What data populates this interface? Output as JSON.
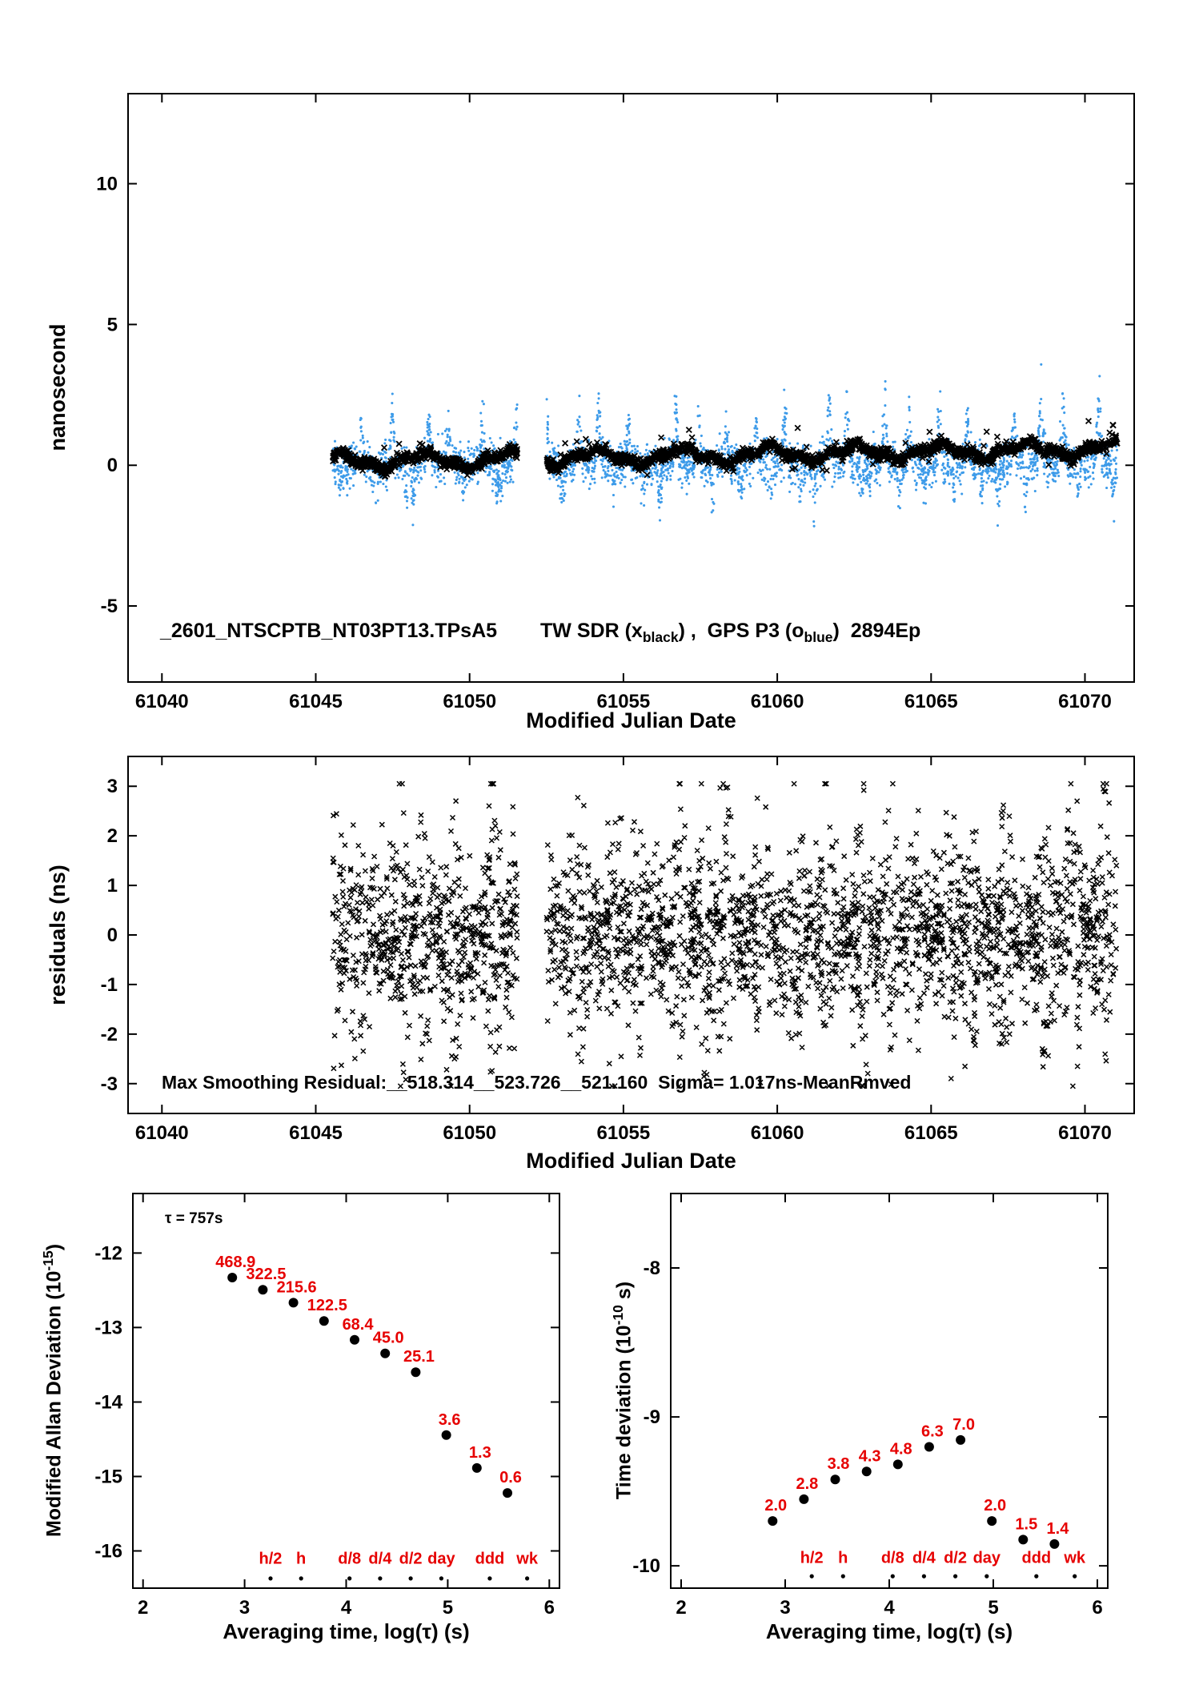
{
  "page": {
    "background": "#ffffff"
  },
  "colors": {
    "blue": "#3D9BE9",
    "red": "#E60000",
    "black": "#000000"
  },
  "chart_data": [
    {
      "id": "tw-gps",
      "type": "scatter",
      "title": {
        "file": "_2601_NTSCPTB_NT03PT13.TPsA5",
        "tw": "TW SDR (x",
        "tw_sub": "black",
        "mid": ") ,  GPS P3 (o",
        "gps_sub": "blue",
        "end": ")  2894Ep"
      },
      "xlabel": "Modified Julian Date",
      "ylabel": "nanosecond",
      "xlim": [
        61038.9,
        61071.6
      ],
      "ylim": [
        -7.7,
        13.2
      ],
      "xticks": [
        61040,
        61045,
        61050,
        61055,
        61060,
        61065,
        61070
      ],
      "xtick_labels": [
        "61040",
        "61045",
        "61050",
        "61055",
        "61060",
        "61065",
        "61070"
      ],
      "yticks": [
        -5,
        0,
        5,
        10
      ],
      "ytick_labels": [
        "-5",
        "0",
        "5",
        "10"
      ],
      "series": [
        {
          "name": "GPS P3 blue dots",
          "marker": "dot",
          "color": "#3D9BE9",
          "seed": 1311,
          "count": 3200,
          "segments": [
            [
              61045.55,
              61051.55
            ],
            [
              61052.5,
              61071.05
            ]
          ],
          "model": {
            "base": 0.05,
            "noise": 0.38,
            "pos_amp": 1.8,
            "neg_amp": 1.3,
            "trend_amp": 0.35
          }
        },
        {
          "name": "TW SDR black x",
          "marker": "x",
          "color": "#000000",
          "seed": 2718,
          "count": 2200,
          "segments": [
            [
              61045.55,
              61051.55
            ],
            [
              61052.5,
              61071.05
            ]
          ],
          "model": {
            "base": 0.12,
            "noise": 0.1,
            "wander": 0.22,
            "trend": 0.019,
            "spike_prob": 0.05,
            "spike_amp": 0.9
          }
        }
      ]
    },
    {
      "id": "residuals",
      "type": "scatter",
      "annotation": "Max Smoothing Residual:__518.314__523.726__521.160  Sigma= 1.017ns-MeanRmved",
      "xlabel": "Modified Julian Date",
      "ylabel": "residuals (ns)",
      "xlim": [
        61038.9,
        61071.6
      ],
      "ylim": [
        -3.6,
        3.6
      ],
      "xticks": [
        61040,
        61045,
        61050,
        61055,
        61060,
        61065,
        61070
      ],
      "xtick_labels": [
        "61040",
        "61045",
        "61050",
        "61055",
        "61060",
        "61065",
        "61070"
      ],
      "yticks": [
        -3,
        -2,
        -1,
        0,
        1,
        2,
        3
      ],
      "ytick_labels": [
        "-3",
        "-2",
        "-1",
        "0",
        "1",
        "2",
        "3"
      ],
      "series": [
        {
          "name": "residuals black x",
          "marker": "x",
          "color": "#000000",
          "seed": 909,
          "count": 3000,
          "segments": [
            [
              61045.55,
              61051.55
            ],
            [
              61052.5,
              61071.05
            ]
          ],
          "model": {
            "day_width": [
              0.62,
              0.85
            ],
            "clamp": 3.05
          }
        }
      ]
    },
    {
      "id": "mdev",
      "type": "scatter",
      "annotation": "τ = 757s",
      "xlabel": "Averaging time, log(τ) (s)",
      "ylabel": "Modified Allan Deviation (10^-15)",
      "ylabel_parts": [
        {
          "t": "Modified Allan Deviation (10"
        },
        {
          "t": "-15",
          "sup": true
        },
        {
          "t": ")"
        }
      ],
      "xlim": [
        1.9,
        6.1
      ],
      "ylim": [
        -16.5,
        -11.2
      ],
      "xticks": [
        2,
        3,
        4,
        5,
        6
      ],
      "xtick_labels": [
        "2",
        "3",
        "4",
        "5",
        "6"
      ],
      "yticks": [
        -12,
        -13,
        -14,
        -15,
        -16
      ],
      "ytick_labels": [
        "-12",
        "-13",
        "-14",
        "-15",
        "-16"
      ],
      "points": {
        "log_tau": [
          2.879,
          3.18,
          3.481,
          3.782,
          4.083,
          4.384,
          4.685,
          4.986,
          5.287,
          5.588
        ],
        "log_dev": [
          -12.329,
          -12.492,
          -12.666,
          -12.912,
          -13.165,
          -13.347,
          -13.6,
          -14.444,
          -14.886,
          -15.222
        ],
        "labels": [
          "468.9",
          "322.5",
          "215.6",
          "122.5",
          "68.4",
          "45.0",
          "25.1",
          "3.6",
          "1.3",
          "0.6"
        ]
      },
      "tau_marks": {
        "labels": [
          "h/2",
          "h",
          "d/8",
          "d/4",
          "d/2",
          "day",
          "ddd",
          "wk"
        ],
        "log_tau": [
          3.255,
          3.556,
          4.033,
          4.334,
          4.635,
          4.937,
          5.414,
          5.782
        ],
        "label_y": -16.17,
        "dot_y": -16.37
      }
    },
    {
      "id": "tdev",
      "type": "scatter",
      "xlabel": "Averaging time, log(τ) (s)",
      "ylabel": "Time deviation (10^-10 s)",
      "ylabel_parts": [
        {
          "t": "Time deviation (10"
        },
        {
          "t": "-10",
          "sup": true
        },
        {
          "t": " s)"
        }
      ],
      "xlim": [
        1.9,
        6.1
      ],
      "ylim": [
        -10.15,
        -7.5
      ],
      "xticks": [
        2,
        3,
        4,
        5,
        6
      ],
      "xtick_labels": [
        "2",
        "3",
        "4",
        "5",
        "6"
      ],
      "yticks": [
        -8,
        -9,
        -10
      ],
      "ytick_labels": [
        "-8",
        "-9",
        "-10"
      ],
      "points": {
        "log_tau": [
          2.879,
          3.18,
          3.481,
          3.782,
          4.083,
          4.384,
          4.685,
          4.986,
          5.287,
          5.588
        ],
        "log_dev": [
          -9.699,
          -9.553,
          -9.42,
          -9.367,
          -9.319,
          -9.201,
          -9.155,
          -9.699,
          -9.824,
          -9.854
        ],
        "labels": [
          "2.0",
          "2.8",
          "3.8",
          "4.3",
          "4.8",
          "6.3",
          "7.0",
          "2.0",
          "1.5",
          "1.4"
        ]
      },
      "tau_marks": {
        "labels": [
          "h/2",
          "h",
          "d/8",
          "d/4",
          "d/2",
          "day",
          "ddd",
          "wk"
        ],
        "log_tau": [
          3.255,
          3.556,
          4.033,
          4.334,
          4.635,
          4.937,
          5.414,
          5.782
        ],
        "label_y": -9.98,
        "dot_y": -10.07
      }
    }
  ]
}
